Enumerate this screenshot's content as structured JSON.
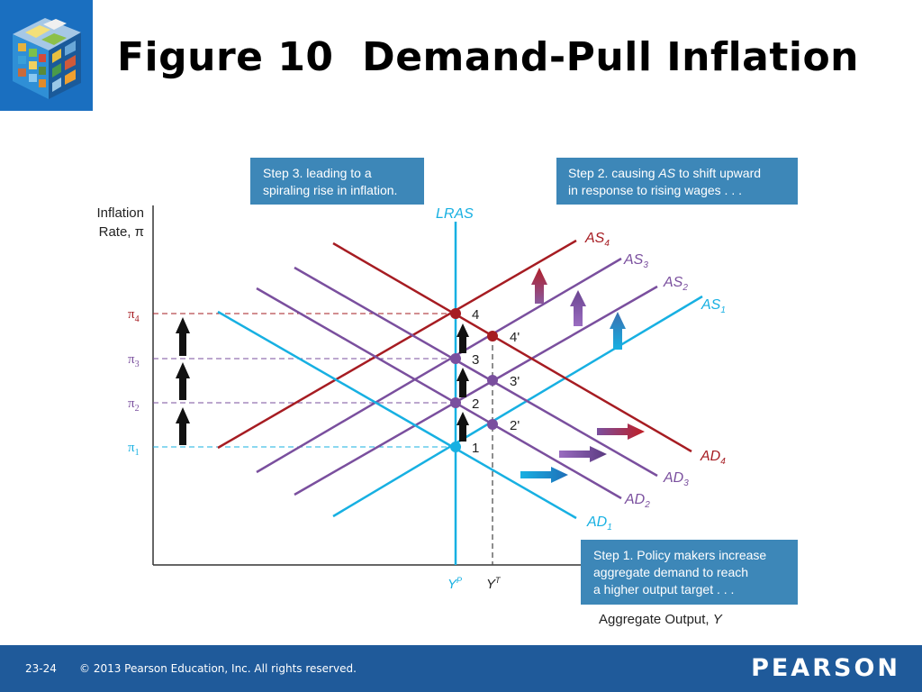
{
  "slide": {
    "title": "Figure 10  Demand-Pull Inflation",
    "slide_number": "23-24",
    "copyright": "© 2013 Pearson Education, Inc. All rights reserved.",
    "brand": "PEARSON",
    "logo": "rubik-cube-logo"
  },
  "colors": {
    "blue": "#17b0e2",
    "purple": "#7a4f9e",
    "red": "#a61c22",
    "box": "#3d87b8",
    "footer": "#1f5a9a"
  },
  "axes": {
    "ylabel_line1": "Inflation",
    "ylabel_line2": "Rate, π",
    "xlabel_main": "Aggregate Output, ",
    "xlabel_var": "Y"
  },
  "levels": {
    "pi4": {
      "sym": "π",
      "sub": "4"
    },
    "pi3": {
      "sym": "π",
      "sub": "3"
    },
    "pi2": {
      "sym": "π",
      "sub": "2"
    },
    "pi1": {
      "sym": "π",
      "sub": "1"
    }
  },
  "outputs": {
    "potential": {
      "sym": "Y",
      "sup": "P"
    },
    "target": {
      "sym": "Y",
      "sup": "T"
    }
  },
  "curves": {
    "lras": "LRAS",
    "as1": {
      "name": "AS",
      "sub": "1"
    },
    "as2": {
      "name": "AS",
      "sub": "2"
    },
    "as3": {
      "name": "AS",
      "sub": "3"
    },
    "as4": {
      "name": "AS",
      "sub": "4"
    },
    "ad1": {
      "name": "AD",
      "sub": "1"
    },
    "ad2": {
      "name": "AD",
      "sub": "2"
    },
    "ad3": {
      "name": "AD",
      "sub": "3"
    },
    "ad4": {
      "name": "AD",
      "sub": "4"
    }
  },
  "points": {
    "p1": "1",
    "p2": "2",
    "p3": "3",
    "p4": "4",
    "p2p": "2'",
    "p3p": "3'",
    "p4p": "4'"
  },
  "steps": {
    "step1": {
      "line1": "Step 1. Policy makers increase",
      "line2": "aggregate demand to reach",
      "line3": "a higher output target . . ."
    },
    "step2": {
      "line1_a": "Step 2. causing ",
      "line1_b": "AS",
      "line1_c": " to shift upward",
      "line2": "in response to rising wages . . ."
    },
    "step3": {
      "line1": "Step 3. leading to a",
      "line2": "spiraling rise in inflation."
    }
  }
}
